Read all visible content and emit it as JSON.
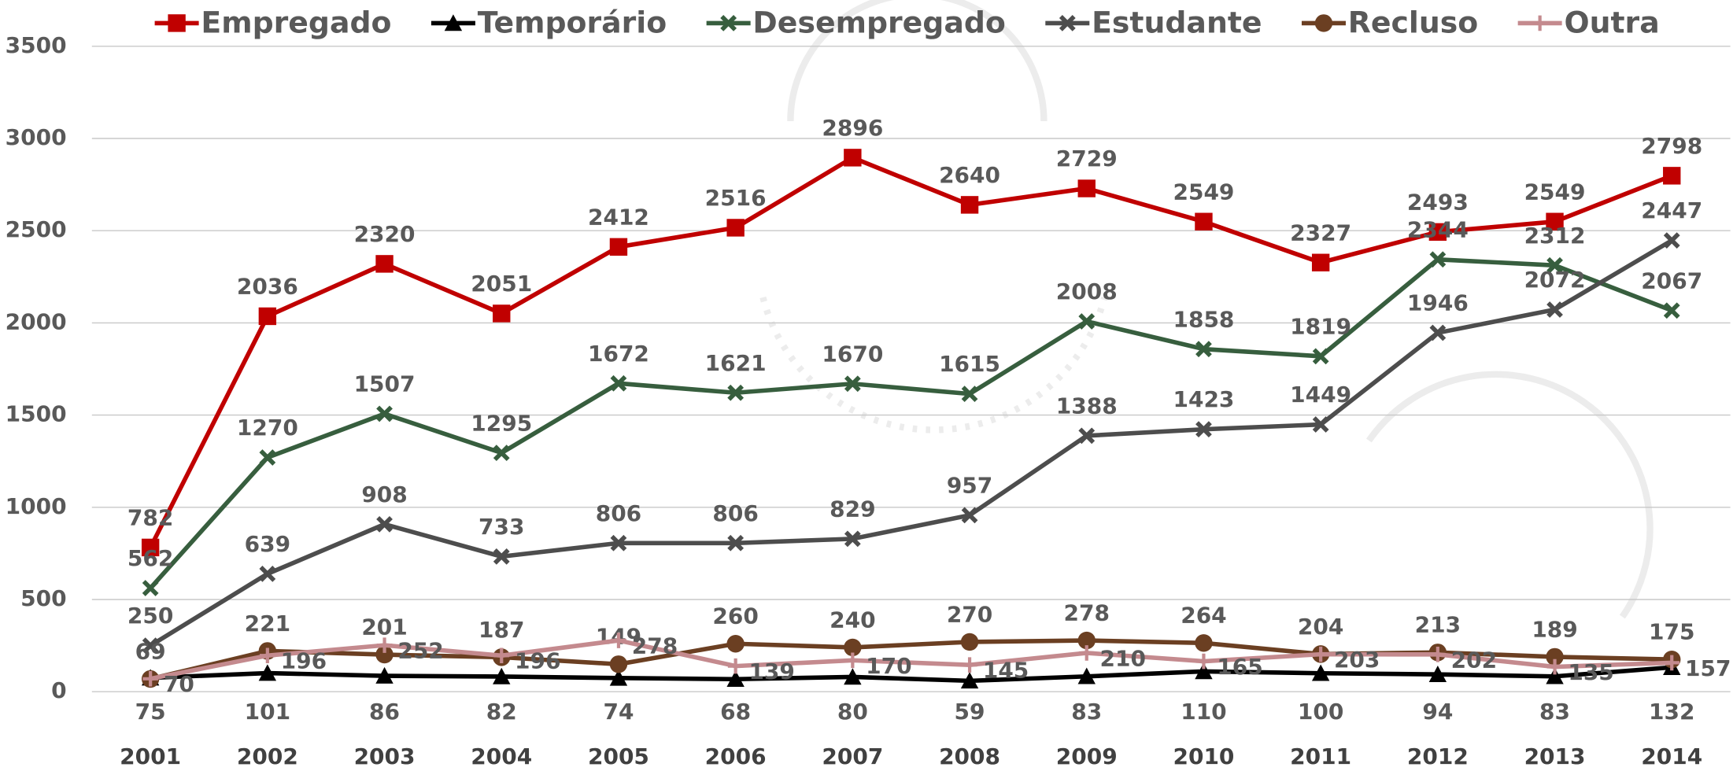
{
  "chart_data": {
    "type": "line",
    "categories": [
      "2001",
      "2002",
      "2003",
      "2004",
      "2005",
      "2006",
      "2007",
      "2008",
      "2009",
      "2010",
      "2011",
      "2012",
      "2013",
      "2014"
    ],
    "series": [
      {
        "name": "Empregado",
        "color": "#c00000",
        "marker": "square",
        "values": [
          782,
          2036,
          2320,
          2051,
          2412,
          2516,
          2896,
          2640,
          2729,
          2549,
          2327,
          2493,
          2549,
          2798
        ]
      },
      {
        "name": "Temporário",
        "color": "#000000",
        "marker": "triangle",
        "values": [
          75,
          101,
          86,
          82,
          74,
          68,
          80,
          59,
          83,
          110,
          100,
          94,
          83,
          132
        ]
      },
      {
        "name": "Desempregado",
        "color": "#375e3e",
        "marker": "x",
        "values": [
          562,
          1270,
          1507,
          1295,
          1672,
          1621,
          1670,
          1615,
          2008,
          1858,
          1819,
          2344,
          2312,
          2067
        ]
      },
      {
        "name": "Estudante",
        "color": "#4d4d4d",
        "marker": "x",
        "values": [
          250,
          639,
          908,
          733,
          806,
          806,
          829,
          957,
          1388,
          1423,
          1449,
          1946,
          2072,
          2447
        ]
      },
      {
        "name": "Recluso",
        "color": "#6b3f22",
        "marker": "circle",
        "values": [
          69,
          221,
          201,
          187,
          149,
          260,
          240,
          270,
          278,
          264,
          204,
          213,
          189,
          175
        ]
      },
      {
        "name": "Outra",
        "color": "#c48a8e",
        "marker": "plus",
        "values": [
          70,
          196,
          252,
          196,
          278,
          139,
          170,
          145,
          210,
          165,
          203,
          202,
          135,
          157
        ]
      }
    ],
    "ylim": [
      0,
      3500
    ],
    "yticks": [
      0,
      500,
      1000,
      1500,
      2000,
      2500,
      3000,
      3500
    ],
    "grid": true,
    "legend": "top"
  }
}
